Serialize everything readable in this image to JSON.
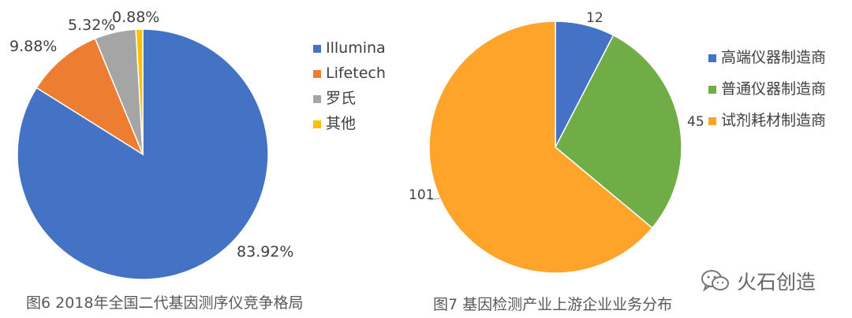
{
  "chart_data": [
    {
      "type": "pie",
      "caption": "图6  2018年全国二代基因测序仪竞争格局",
      "categories": [
        "Illumina",
        "Lifetech",
        "罗氏",
        "其他"
      ],
      "values": [
        83.92,
        9.88,
        5.32,
        0.88
      ],
      "labels": [
        "83.92%",
        "9.88%",
        "5.32%",
        "0.88%"
      ],
      "colors": [
        "#4472C4",
        "#ED7D31",
        "#A5A5A5",
        "#FFC000"
      ],
      "legend": "right"
    },
    {
      "type": "pie",
      "caption": "图7  基因检测产业上游企业业务分布",
      "categories": [
        "高端仪器制造商",
        "普通仪器制造商",
        "试剂耗材制造商"
      ],
      "values": [
        12,
        45,
        101
      ],
      "labels": [
        "12",
        "45",
        "101"
      ],
      "colors": [
        "#4472C4",
        "#70AD47",
        "#FFA42B"
      ],
      "legend": "right"
    }
  ],
  "watermark": {
    "text": "火石创造",
    "icon": "wechat-icon"
  }
}
